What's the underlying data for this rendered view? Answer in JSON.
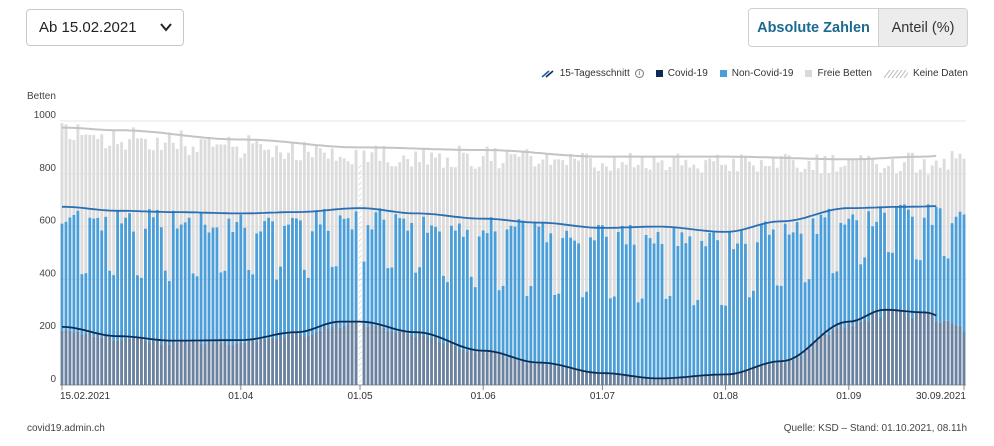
{
  "controls": {
    "date_select": "Ab 15.02.2021",
    "toggle_absolute": "Absolute Zahlen",
    "toggle_share": "Anteil (%)"
  },
  "legend": [
    {
      "label": "15-Tagesschnitt",
      "kind": "line",
      "color": "#1f5f9e"
    },
    {
      "label": "Covid-19",
      "kind": "square",
      "color": "#0b2d55"
    },
    {
      "label": "Non-Covid-19",
      "kind": "square",
      "color": "#4b9ed8"
    },
    {
      "label": "Freie Betten",
      "kind": "square",
      "color": "#d9d9d9"
    },
    {
      "label": "Keine Daten",
      "kind": "hatch",
      "color": "#c8c8c8"
    }
  ],
  "footer": {
    "source_left": "covid19.admin.ch",
    "source_right": "Quelle: KSD – Stand: 01.10.2021, 08.11h"
  },
  "chart_data": {
    "type": "bar",
    "stacked": true,
    "ylabel": "Betten",
    "ylim": [
      0,
      1000
    ],
    "yticks": [
      0,
      200,
      400,
      600,
      800,
      1000
    ],
    "xlim": [
      "2021-02-15",
      "2021-09-30"
    ],
    "xtick_labels": [
      "15.02.2021",
      "01.04",
      "01.05",
      "01.06",
      "01.07",
      "01.08",
      "01.09",
      "30.09.2021"
    ],
    "series": [
      {
        "name": "Covid-19",
        "color": "#0b2d55"
      },
      {
        "name": "Non-Covid-19",
        "color": "#4b9ed8"
      },
      {
        "name": "Freie Betten",
        "color": "#d9d9d9"
      }
    ],
    "weekly_dip_factor": 0.55,
    "covid_anchors": [
      {
        "date": "2021-02-15",
        "value": 220
      },
      {
        "date": "2021-03-01",
        "value": 185
      },
      {
        "date": "2021-03-15",
        "value": 168
      },
      {
        "date": "2021-04-01",
        "value": 170
      },
      {
        "date": "2021-04-15",
        "value": 200
      },
      {
        "date": "2021-04-26",
        "value": 240
      },
      {
        "date": "2021-05-01",
        "value": 240
      },
      {
        "date": "2021-05-15",
        "value": 200
      },
      {
        "date": "2021-06-01",
        "value": 130
      },
      {
        "date": "2021-06-15",
        "value": 85
      },
      {
        "date": "2021-07-01",
        "value": 45
      },
      {
        "date": "2021-07-15",
        "value": 25
      },
      {
        "date": "2021-08-01",
        "value": 40
      },
      {
        "date": "2021-08-15",
        "value": 90
      },
      {
        "date": "2021-09-01",
        "value": 240
      },
      {
        "date": "2021-09-10",
        "value": 285
      },
      {
        "date": "2021-09-20",
        "value": 275
      },
      {
        "date": "2021-09-30",
        "value": 220
      }
    ],
    "total_occupied_anchors": [
      {
        "date": "2021-02-15",
        "value": 675
      },
      {
        "date": "2021-03-01",
        "value": 660
      },
      {
        "date": "2021-03-15",
        "value": 655
      },
      {
        "date": "2021-04-01",
        "value": 650
      },
      {
        "date": "2021-04-15",
        "value": 655
      },
      {
        "date": "2021-05-01",
        "value": 670
      },
      {
        "date": "2021-05-15",
        "value": 650
      },
      {
        "date": "2021-06-01",
        "value": 630
      },
      {
        "date": "2021-06-15",
        "value": 615
      },
      {
        "date": "2021-07-01",
        "value": 595
      },
      {
        "date": "2021-07-15",
        "value": 600
      },
      {
        "date": "2021-08-01",
        "value": 580
      },
      {
        "date": "2021-08-15",
        "value": 620
      },
      {
        "date": "2021-09-01",
        "value": 670
      },
      {
        "date": "2021-09-15",
        "value": 675
      },
      {
        "date": "2021-09-30",
        "value": 680
      }
    ],
    "total_capacity_anchors": [
      {
        "date": "2021-02-15",
        "value": 975
      },
      {
        "date": "2021-03-01",
        "value": 965
      },
      {
        "date": "2021-04-01",
        "value": 930
      },
      {
        "date": "2021-05-01",
        "value": 900
      },
      {
        "date": "2021-06-01",
        "value": 890
      },
      {
        "date": "2021-07-01",
        "value": 865
      },
      {
        "date": "2021-08-01",
        "value": 865
      },
      {
        "date": "2021-09-01",
        "value": 855
      },
      {
        "date": "2021-09-20",
        "value": 865
      },
      {
        "date": "2021-09-30",
        "value": 880
      }
    ],
    "no_data_dates": [
      "2021-05-01"
    ]
  }
}
